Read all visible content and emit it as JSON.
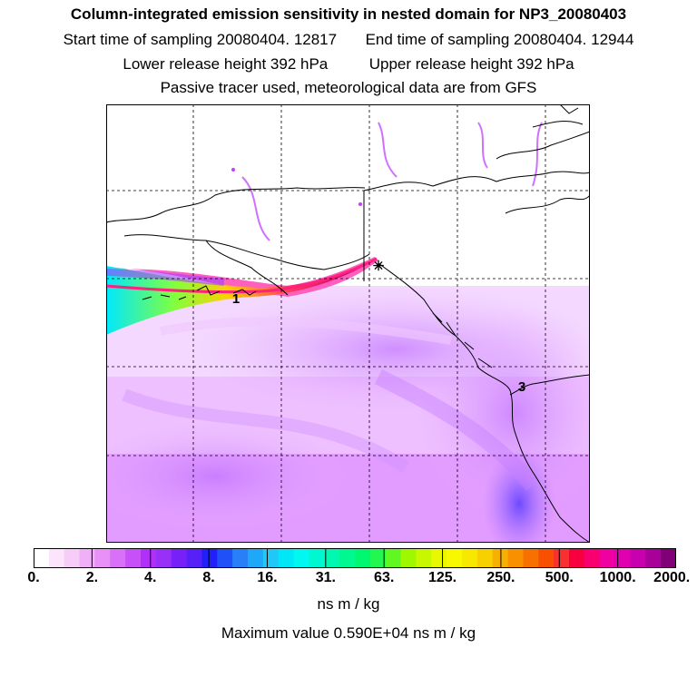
{
  "title": "Column-integrated emission sensitivity in nested domain for NP3_20080403",
  "sampling": {
    "start_label": "Start time of sampling",
    "start_value": "20080404. 12817",
    "end_label": "End time of sampling",
    "end_value": "20080404. 12944"
  },
  "release": {
    "lower_label": "Lower release height",
    "lower_value": "392 hPa",
    "upper_label": "Upper release height",
    "upper_value": "392 hPa"
  },
  "tracer_note": "Passive tracer used, meteorological data are from GFS",
  "map": {
    "release_marker": "✳",
    "labels": [
      {
        "id": "cluster-1",
        "text": "1"
      },
      {
        "id": "cluster-3",
        "text": "3"
      }
    ],
    "colors": {
      "plume_core": "#c0006e",
      "plume_mid": "#ffe000",
      "plume_outer": "#00e0ff",
      "background_field": "#e080ff",
      "coast": "#000000",
      "grid": "#000000"
    }
  },
  "colorbar": {
    "tick_labels": [
      "0.",
      "2.",
      "4.",
      "8.",
      "16.",
      "31.",
      "63.",
      "125.",
      "250.",
      "500.",
      "1000.",
      "2000."
    ],
    "colors": [
      "#ffffff",
      "#fce4fc",
      "#f8ccf8",
      "#f0b0f8",
      "#e890f8",
      "#d870f8",
      "#c850f8",
      "#b030f8",
      "#9830f8",
      "#7820f8",
      "#5820f8",
      "#2020f8",
      "#2050f8",
      "#2880f8",
      "#20a8f8",
      "#20c8f8",
      "#00e8f8",
      "#00f8f0",
      "#00f8d0",
      "#00f8b0",
      "#00f890",
      "#00f870",
      "#20f850",
      "#60f820",
      "#a0f800",
      "#c8f800",
      "#e8f800",
      "#f8f800",
      "#f8e800",
      "#f8d000",
      "#f8b000",
      "#f89000",
      "#f87000",
      "#f85000",
      "#f83030",
      "#f80040",
      "#f80070",
      "#f000a0",
      "#e000b0",
      "#c800b0",
      "#a80098",
      "#800078"
    ]
  },
  "units": "ns m / kg",
  "max_label": "Maximum value",
  "max_value": "0.590E+04",
  "max_units": "ns m / kg"
}
